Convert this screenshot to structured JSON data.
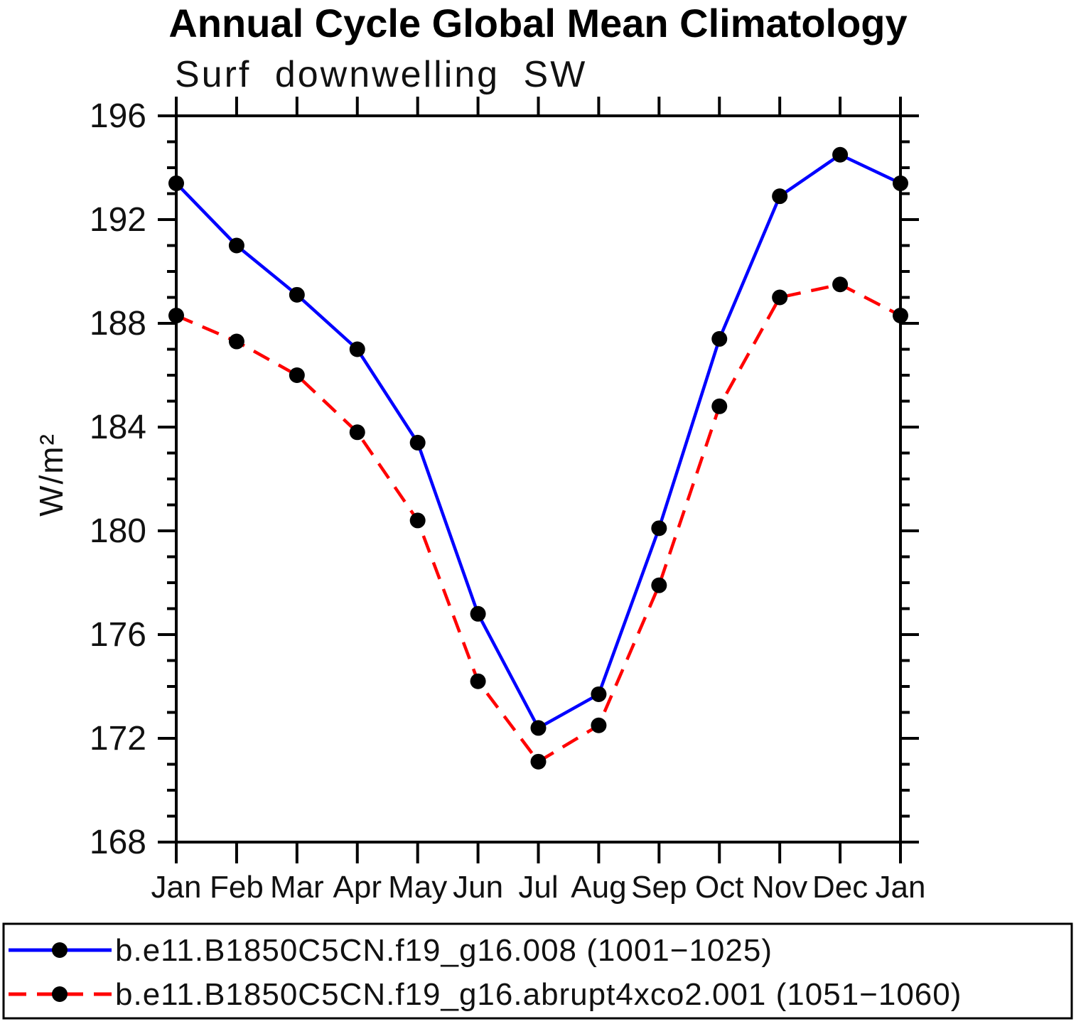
{
  "chart_data": {
    "type": "line",
    "title": "Annual Cycle Global Mean Climatology",
    "subtitle": "Surf downwelling SW",
    "xlabel": "",
    "ylabel": "W/m²",
    "ylim": [
      168,
      196
    ],
    "ytick_major_step": 4,
    "ytick_minor_step": 1,
    "grid": false,
    "legend_position": "bottom",
    "background_color": "#ffffff",
    "axis_color": "#000000",
    "marker_color": "#000000",
    "categories": [
      "Jan",
      "Feb",
      "Mar",
      "Apr",
      "May",
      "Jun",
      "Jul",
      "Aug",
      "Sep",
      "Oct",
      "Nov",
      "Dec",
      "Jan"
    ],
    "series": [
      {
        "name": "b.e11.B1850C5CN.f19_g16.008 (1001−1025)",
        "color": "#0000ff",
        "line_style": "solid",
        "marker": "circle",
        "values": [
          193.4,
          191.0,
          189.1,
          187.0,
          183.4,
          176.8,
          172.4,
          173.7,
          180.1,
          187.4,
          192.9,
          194.5,
          193.4
        ]
      },
      {
        "name": "b.e11.B1850C5CN.f19_g16.abrupt4xco2.001 (1051−1060)",
        "color": "#ff0000",
        "line_style": "dashed",
        "marker": "circle",
        "values": [
          188.3,
          187.3,
          186.0,
          183.8,
          180.4,
          174.2,
          171.1,
          172.5,
          177.9,
          184.8,
          189.0,
          189.5,
          188.3
        ]
      }
    ]
  }
}
